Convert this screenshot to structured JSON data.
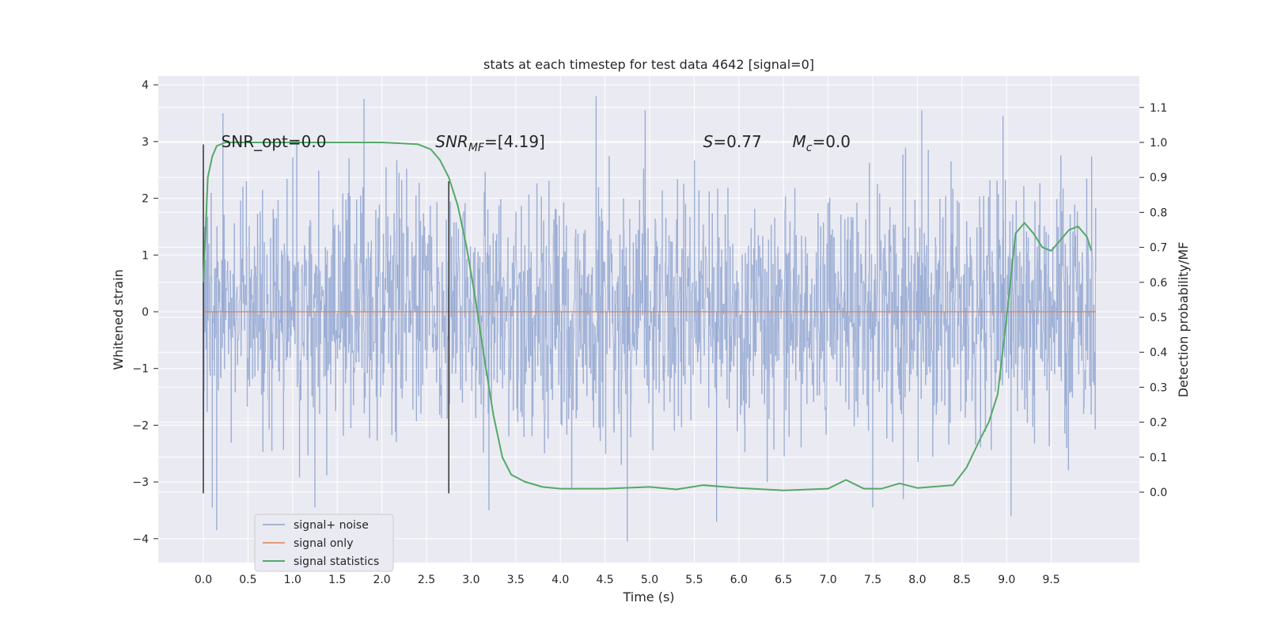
{
  "chart_data": {
    "type": "line",
    "title": "stats at each timestep for test data 4642 [signal=0]",
    "xlabel": "Time (s)",
    "ylabel_left": "Whitened strain",
    "ylabel_right": "Detection probability/MF",
    "xlim": [
      -0.5,
      10.5
    ],
    "ylim_left": [
      -4.4,
      4.2
    ],
    "ylim_right": [
      -0.2,
      1.2
    ],
    "x_ticks": [
      0.0,
      0.5,
      1.0,
      1.5,
      2.0,
      2.5,
      3.0,
      3.5,
      4.0,
      4.5,
      5.0,
      5.5,
      6.0,
      6.5,
      7.0,
      7.5,
      8.0,
      8.5,
      9.0,
      9.5
    ],
    "x_tick_labels": [
      "0.0",
      "0.5",
      "1.0",
      "1.5",
      "2.0",
      "2.5",
      "3.0",
      "3.5",
      "4.0",
      "4.5",
      "5.0",
      "5.5",
      "6.0",
      "6.5",
      "7.0",
      "7.5",
      "8.0",
      "8.5",
      "9.0",
      "9.5"
    ],
    "y_left_ticks": [
      -4,
      -3,
      -2,
      -1,
      0,
      1,
      2,
      3,
      4
    ],
    "y_left_tick_labels": [
      "−4",
      "−3",
      "−2",
      "−1",
      "0",
      "1",
      "2",
      "3",
      "4"
    ],
    "y_right_ticks": [
      0.0,
      0.1,
      0.2,
      0.3,
      0.4,
      0.5,
      0.6,
      0.7,
      0.8,
      0.9,
      1.0,
      1.1
    ],
    "y_right_tick_labels": [
      "0.0",
      "0.1",
      "0.2",
      "0.3",
      "0.4",
      "0.5",
      "0.6",
      "0.7",
      "0.8",
      "0.9",
      "1.0",
      "1.1"
    ],
    "grid": true,
    "legend_position": "lower-left",
    "colors": {
      "background": "#eaeaf2",
      "grid": "#ffffff",
      "noise": "#8fa5d0",
      "signal": "#dd8452",
      "stats": "#55a868",
      "vline": "#333333"
    },
    "series": [
      {
        "name": "signal+ noise",
        "axis": "left",
        "description_of_values": "whitened noise strain, roughly within -2 to 2.7 with spikes reaching about -4.0 and 3.8",
        "x_range": [
          0.0,
          10.0
        ],
        "spikes": [
          {
            "x": 1.8,
            "y": 3.75
          },
          {
            "x": 4.4,
            "y": 3.8
          },
          {
            "x": 4.95,
            "y": 3.55
          },
          {
            "x": 0.22,
            "y": 3.5
          },
          {
            "x": 8.05,
            "y": 3.55
          },
          {
            "x": 8.96,
            "y": 3.45
          },
          {
            "x": 0.1,
            "y": -3.45
          },
          {
            "x": 0.15,
            "y": -3.85
          },
          {
            "x": 4.75,
            "y": -4.05
          },
          {
            "x": 3.2,
            "y": -3.5
          },
          {
            "x": 9.05,
            "y": -3.6
          },
          {
            "x": 7.5,
            "y": -3.45
          },
          {
            "x": 1.25,
            "y": -3.45
          },
          {
            "x": 5.75,
            "y": -3.7
          }
        ]
      },
      {
        "name": "signal only",
        "axis": "left",
        "x": [
          0.0,
          10.0
        ],
        "y": [
          0.0,
          0.0
        ]
      },
      {
        "name": "signal statistics",
        "axis": "right",
        "x": [
          0.0,
          0.05,
          0.1,
          0.15,
          0.25,
          0.5,
          1.0,
          1.5,
          2.0,
          2.4,
          2.55,
          2.65,
          2.75,
          2.85,
          2.95,
          3.05,
          3.15,
          3.25,
          3.35,
          3.45,
          3.6,
          3.8,
          4.0,
          4.5,
          5.0,
          5.3,
          5.6,
          6.0,
          6.5,
          7.0,
          7.2,
          7.4,
          7.6,
          7.8,
          8.0,
          8.4,
          8.55,
          8.7,
          8.8,
          8.9,
          9.0,
          9.1,
          9.2,
          9.3,
          9.4,
          9.5,
          9.6,
          9.7,
          9.8,
          9.9,
          9.95
        ],
        "y": [
          0.6,
          0.9,
          0.96,
          0.99,
          1.0,
          1.0,
          1.0,
          1.0,
          1.0,
          0.995,
          0.98,
          0.95,
          0.9,
          0.82,
          0.7,
          0.55,
          0.38,
          0.22,
          0.1,
          0.05,
          0.03,
          0.015,
          0.01,
          0.01,
          0.015,
          0.008,
          0.02,
          0.012,
          0.005,
          0.01,
          0.035,
          0.01,
          0.01,
          0.025,
          0.012,
          0.02,
          0.07,
          0.15,
          0.2,
          0.28,
          0.5,
          0.74,
          0.77,
          0.74,
          0.7,
          0.69,
          0.72,
          0.75,
          0.76,
          0.73,
          0.69
        ]
      }
    ],
    "vertical_lines": [
      {
        "x": 0.0,
        "y_range": [
          -3.2,
          2.95
        ]
      },
      {
        "x": 2.75,
        "y_range": [
          -3.2,
          2.3
        ]
      }
    ],
    "annotations": [
      {
        "id": "snr-opt",
        "x": 0.2,
        "y": 3.0,
        "text": "SNR_opt=0.0"
      },
      {
        "id": "snr-mf",
        "x": 2.6,
        "y": 3.0,
        "main": "SNR",
        "sub": "MF",
        "rest": "=[4.19]"
      },
      {
        "id": "s-value",
        "x": 5.6,
        "y": 3.0,
        "main": "S",
        "rest": "=0.77"
      },
      {
        "id": "mc-value",
        "x": 6.6,
        "y": 3.0,
        "main": "M",
        "sub": "c",
        "rest": "=0.0"
      }
    ]
  }
}
